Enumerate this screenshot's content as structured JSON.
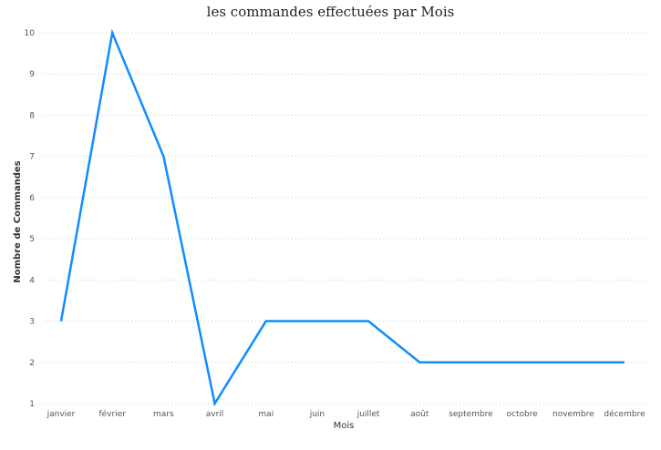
{
  "chart_data": {
    "type": "line",
    "title": "les commandes effectuées par Mois",
    "xlabel": "Mois",
    "ylabel": "Nombre de Commandes",
    "categories": [
      "janvier",
      "février",
      "mars",
      "avril",
      "mai",
      "juin",
      "juillet",
      "août",
      "septembre",
      "octobre",
      "novembre",
      "décembre"
    ],
    "series": [
      {
        "values": [
          3,
          10,
          7,
          1,
          3,
          3,
          3,
          2,
          2,
          2,
          2,
          2
        ],
        "color": "#118DFF"
      }
    ],
    "ylim": [
      1,
      10
    ],
    "yticks": [
      1,
      2,
      3,
      4,
      5,
      6,
      7,
      8,
      9,
      10
    ],
    "grid": true,
    "legend": "none"
  }
}
